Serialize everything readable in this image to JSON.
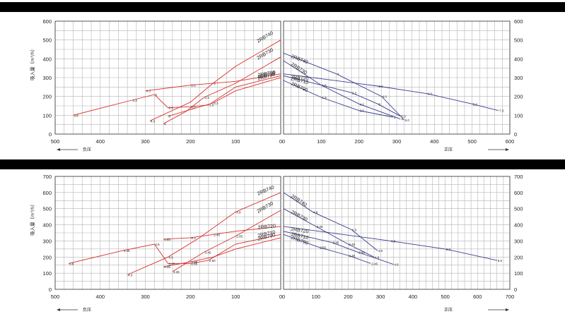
{
  "chart_data": [
    {
      "type": "line",
      "ylabel": "吸入量（m³/h）",
      "neg_label": "负压",
      "pos_label": "正压",
      "left_panel": {
        "xlim": [
          500,
          0
        ],
        "xticks": [
          "500",
          "400",
          "300",
          "200",
          "100",
          "0"
        ],
        "series": [
          {
            "name": "2RB740",
            "x": [
              290,
              200,
              150,
              100,
              0
            ],
            "y": [
              70,
              170,
              270,
              360,
              500
            ],
            "point_labels": [
              "4.0",
              "",
              "4",
              "",
              ""
            ]
          },
          {
            "name": "2RB730",
            "x": [
              260,
              210,
              170,
              100,
              0
            ],
            "y": [
              55,
              120,
              195,
              270,
              410
            ],
            "point_labels": [
              "4",
              "",
              "2.3",
              "",
              ""
            ]
          },
          {
            "name": "2RB720",
            "x": [
              300,
              200,
              100,
              0
            ],
            "y": [
              230,
              260,
              280,
              320
            ],
            "point_labels": [
              "4.3",
              "2.2",
              "",
              ""
            ]
          },
          {
            "name": "2RB710",
            "x": [
              460,
              330,
              280,
              250,
              200,
              160,
              100,
              0
            ],
            "y": [
              100,
              180,
              210,
              140,
              145,
              155,
              250,
              310
            ],
            "point_labels": [
              "5.6",
              "4.3",
              "3",
              "6.5",
              "5.0",
              "1.6",
              "",
              ""
            ]
          },
          {
            "name": "2RB790",
            "x": [
              250,
              200,
              150,
              100,
              0
            ],
            "y": [
              95,
              130,
              165,
              230,
              300
            ],
            "point_labels": [
              "3",
              "",
              "3.3",
              "",
              ""
            ]
          }
        ],
        "yticks": [
          "0",
          "100",
          "200",
          "300",
          "400",
          "500",
          "600"
        ],
        "ylim": [
          0,
          600
        ]
      },
      "right_panel": {
        "xlim": [
          0,
          600
        ],
        "xticks": [
          "0",
          "100",
          "200",
          "300",
          "400",
          "500",
          "600"
        ],
        "series": [
          {
            "name": "2RB740",
            "x": [
              0,
              140,
              260,
              320
            ],
            "y": [
              430,
              320,
              200,
              75
            ],
            "point_labels": [
              "",
              "4",
              "4.0",
              "6.0"
            ]
          },
          {
            "name": "2RB730",
            "x": [
              0,
              100,
              200,
              310
            ],
            "y": [
              390,
              260,
              160,
              80
            ],
            "point_labels": [
              "",
              "1.8",
              "4.2",
              "4"
            ]
          },
          {
            "name": "2RB720",
            "x": [
              0,
              250,
              380,
              500,
              570
            ],
            "y": [
              320,
              255,
              215,
              160,
              125
            ],
            "point_labels": [
              "",
              "2.0",
              "4.3",
              "5.2",
              "7.3"
            ]
          },
          {
            "name": "2RB710",
            "x": [
              0,
              180,
              250,
              310
            ],
            "y": [
              310,
              220,
              160,
              95
            ],
            "point_labels": [
              "",
              "2.2",
              "3",
              "5.0"
            ]
          },
          {
            "name": "2RB790",
            "x": [
              0,
              100,
              200,
              290
            ],
            "y": [
              285,
              195,
              125,
              90
            ],
            "point_labels": [
              "",
              "1.8",
              "3.5",
              "3"
            ]
          }
        ],
        "yticks": [
          "0",
          "100",
          "200",
          "300",
          "400",
          "500",
          "600"
        ],
        "ylim": [
          0,
          600
        ]
      }
    },
    {
      "type": "line",
      "ylabel": "吸入量（m³/h）",
      "neg_label": "负压",
      "pos_label": "正压",
      "left_panel": {
        "xlim": [
          500,
          0
        ],
        "xticks": [
          "500",
          "400",
          "300",
          "200",
          "100",
          "0"
        ],
        "series": [
          {
            "name": "2RB740",
            "x": [
              340,
              250,
              180,
              100,
              0
            ],
            "y": [
              90,
              200,
              320,
              480,
              600
            ],
            "point_labels": [
              "4.0",
              "4.5",
              "",
              "4.8",
              ""
            ]
          },
          {
            "name": "2RB730",
            "x": [
              240,
              170,
              100,
              0
            ],
            "y": [
              110,
              230,
              330,
              490
            ],
            "point_labels": [
              "3.45",
              "3.45",
              "2.05",
              ""
            ]
          },
          {
            "name": "2RB720",
            "x": [
              260,
              200,
              150,
              100,
              0
            ],
            "y": [
              310,
              320,
              340,
              360,
              390
            ],
            "point_labels": [
              "4.85",
              "6.3",
              "2.45",
              "",
              ""
            ]
          },
          {
            "name": "2RB710",
            "x": [
              470,
              350,
              280,
              250,
              200,
              160,
              100,
              0
            ],
            "y": [
              160,
              240,
              280,
              160,
              160,
              180,
              280,
              340
            ],
            "point_labels": [
              "6.6",
              "4.45",
              "4.6",
              "3.45",
              "2.85",
              "2.50",
              "",
              ""
            ]
          },
          {
            "name": "2RB790",
            "x": [
              260,
              200,
              150,
              100,
              0
            ],
            "y": [
              140,
              170,
              200,
              250,
              320
            ],
            "point_labels": [
              "3.45",
              "2.55",
              "",
              "",
              ""
            ]
          }
        ],
        "yticks": [
          "0",
          "100",
          "200",
          "300",
          "400",
          "500",
          "600",
          "700"
        ],
        "ylim": [
          0,
          700
        ]
      },
      "right_panel": {
        "xlim": [
          0,
          700
        ],
        "xticks": [
          "0",
          "100",
          "200",
          "300",
          "400",
          "500",
          "600",
          "700"
        ],
        "series": [
          {
            "name": "2RB740",
            "x": [
              0,
              90,
              210,
              290
            ],
            "y": [
              600,
              480,
              370,
              240
            ],
            "point_labels": [
              "",
              "4.8",
              "6.3",
              "4.8"
            ]
          },
          {
            "name": "2RB730",
            "x": [
              0,
              100,
              200,
              280
            ],
            "y": [
              500,
              390,
              280,
              200
            ],
            "point_labels": [
              "",
              "3.05",
              "3.45",
              "4.8"
            ]
          },
          {
            "name": "2RB720",
            "x": [
              0,
              330,
              500,
              660
            ],
            "y": [
              390,
              300,
              250,
              180
            ],
            "point_labels": [
              "",
              "4.8",
              "6.3",
              "6.6"
            ]
          },
          {
            "name": "2RB710",
            "x": [
              0,
              150,
              230,
              340
            ],
            "y": [
              360,
              290,
              230,
              155
            ],
            "point_labels": [
              "",
              "3.45",
              "2.95",
              "4.6"
            ]
          },
          {
            "name": "2RB790",
            "x": [
              0,
              110,
              200,
              270
            ],
            "y": [
              340,
              260,
              210,
              160
            ],
            "point_labels": [
              "",
              "2.55",
              "2.45",
              "2.45"
            ]
          }
        ],
        "yticks": [
          "0",
          "100",
          "200",
          "300",
          "400",
          "500",
          "600",
          "700"
        ],
        "ylim": [
          0,
          700
        ]
      }
    }
  ],
  "colors": {
    "left_series": "#d8322f",
    "right_series": "#3a3d8c",
    "grid": "#b5b5b5",
    "axis": "#333333"
  }
}
